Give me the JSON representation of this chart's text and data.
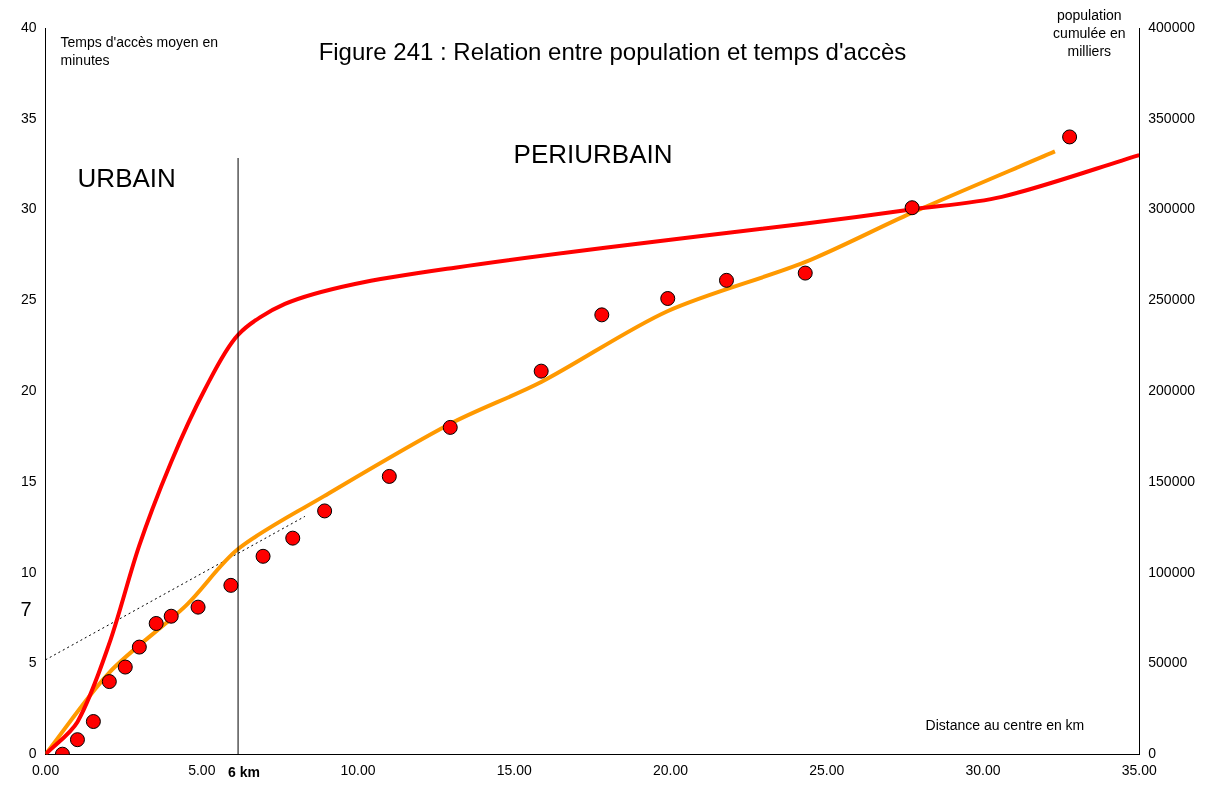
{
  "chart_data": {
    "type": "line",
    "title": "Figure 241 : Relation entre population et temps d'accès",
    "xlabel": "Distance au centre en km",
    "ylabel": "Temps d'accès moyen en minutes",
    "y2label": "population cumulée en milliers",
    "annotations": [
      "URBAIN",
      "PERIURBAIN",
      "7"
    ],
    "xlim": [
      0,
      35
    ],
    "xticks": [
      {
        "value": 0,
        "label": "0.00"
      },
      {
        "value": 5,
        "label": "5.00"
      },
      {
        "value": 10,
        "label": "10.00"
      },
      {
        "value": 15,
        "label": "15.00"
      },
      {
        "value": 20,
        "label": "20.00"
      },
      {
        "value": 25,
        "label": "25.00"
      },
      {
        "value": 30,
        "label": "30.00"
      },
      {
        "value": 35,
        "label": "35.00"
      }
    ],
    "ylim": [
      0,
      40
    ],
    "yticks": [
      0,
      5,
      10,
      15,
      20,
      25,
      30,
      35,
      40
    ],
    "y2lim": [
      0,
      400000
    ],
    "y2ticks": [
      0,
      50000,
      100000,
      150000,
      200000,
      250000,
      300000,
      350000,
      400000
    ],
    "grid": false,
    "legend": false,
    "ref_lines": [
      {
        "axis": "x",
        "value": 6.16,
        "label": "6 km",
        "color": "#000000",
        "line_style": "solid"
      }
    ],
    "series": [
      {
        "type": "line",
        "axis": "y2",
        "color": "#ff0000",
        "marker": "none",
        "line_style": "solid",
        "x": [
          0,
          1.02,
          2.04,
          3.0,
          4.02,
          5.1,
          6.16,
          7.66,
          9.9,
          13.1,
          17.9,
          24.2,
          27.7,
          30.6,
          35
        ],
        "values": [
          0,
          17800,
          61000,
          115000,
          161000,
          201000,
          231000,
          248000,
          259000,
          268000,
          279000,
          292000,
          300000,
          307000,
          330000
        ]
      },
      {
        "type": "line",
        "color": "#ff9900",
        "marker": "none",
        "line_style": "solid",
        "x": [
          0,
          2.04,
          4.5,
          6.16,
          8.9,
          12.95,
          15.86,
          19.9,
          24.3,
          27.7,
          32.3
        ],
        "values": [
          0,
          4.5,
          8.2,
          11.3,
          14.2,
          18.2,
          20.5,
          24.4,
          27.1,
          29.8,
          33.2
        ]
      },
      {
        "type": "line",
        "color": "#000000",
        "marker": "none",
        "line_style": "dotted",
        "x": [
          0,
          8.3
        ],
        "values": [
          5.2,
          13.1
        ]
      },
      {
        "type": "scatter",
        "color": "#ff0000",
        "marker": "circle",
        "x": [
          0.54,
          1.02,
          1.53,
          2.04,
          2.55,
          3.0,
          3.54,
          4.02,
          4.88,
          5.93,
          6.96,
          7.91,
          8.93,
          11.0,
          12.95,
          15.86,
          17.8,
          19.91,
          21.79,
          24.31,
          27.73,
          32.77
        ],
        "values": [
          0,
          0.8,
          1.8,
          4.0,
          4.8,
          5.9,
          7.2,
          7.6,
          8.1,
          9.3,
          10.9,
          11.9,
          13.4,
          15.3,
          18.0,
          21.1,
          24.2,
          25.1,
          26.1,
          26.5,
          30.1,
          34.0
        ]
      }
    ]
  }
}
